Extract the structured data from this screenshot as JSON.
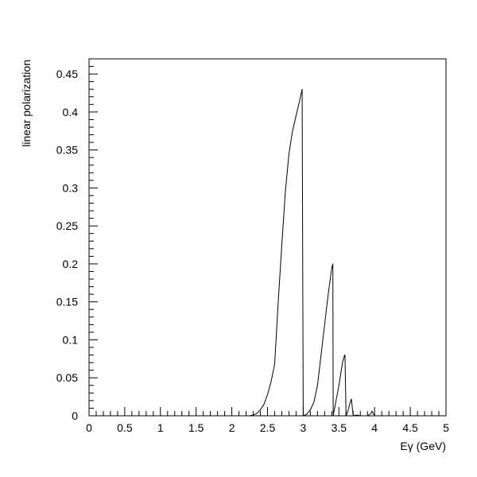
{
  "chart_data": {
    "type": "line",
    "title": "",
    "xlabel": "Eγ (GeV)",
    "ylabel": "linear polarization",
    "xlim": [
      0,
      5
    ],
    "ylim": [
      0,
      0.47
    ],
    "grid": false,
    "legend": "none",
    "line_color": "#000000",
    "x_ticks": [
      0,
      0.5,
      1,
      1.5,
      2,
      2.5,
      3,
      3.5,
      4,
      4.5,
      5
    ],
    "x_tick_labels": [
      "0",
      "0.5",
      "1",
      "1.5",
      "2",
      "2.5",
      "3",
      "3.5",
      "4",
      "4.5",
      "5"
    ],
    "y_ticks": [
      0,
      0.05,
      0.1,
      0.15,
      0.2,
      0.25,
      0.3,
      0.35,
      0.4,
      0.45
    ],
    "y_tick_labels": [
      "0",
      "0.05",
      "0.1",
      "0.15",
      "0.2",
      "0.25",
      "0.3",
      "0.35",
      "0.4",
      "0.45"
    ],
    "series": [
      {
        "x": [
          0,
          2.25,
          2.3,
          2.35,
          2.4,
          2.45,
          2.5,
          2.55,
          2.6,
          2.65,
          2.7,
          2.75,
          2.8,
          2.85,
          2.9,
          2.95,
          2.98,
          2.985,
          3.0,
          3.05,
          3.1,
          3.15,
          3.2,
          3.25,
          3.3,
          3.35,
          3.4,
          3.41,
          3.415,
          3.42,
          3.45,
          3.5,
          3.55,
          3.58,
          3.585,
          3.6,
          3.62,
          3.65,
          3.67,
          3.675,
          3.7,
          3.75,
          3.8,
          3.9,
          3.95,
          3.96,
          3.965,
          4.0,
          5.0
        ],
        "y": [
          0,
          0,
          0.001,
          0.003,
          0.008,
          0.015,
          0.028,
          0.045,
          0.068,
          0.15,
          0.225,
          0.295,
          0.345,
          0.375,
          0.395,
          0.415,
          0.428,
          0.43,
          0,
          0.002,
          0.008,
          0.018,
          0.04,
          0.08,
          0.12,
          0.16,
          0.195,
          0.198,
          0.2,
          0,
          0.015,
          0.04,
          0.07,
          0.08,
          0.08,
          0,
          0.004,
          0.015,
          0.021,
          0.022,
          0,
          0.001,
          0,
          0,
          0.003,
          0.006,
          0.006,
          0,
          0
        ]
      }
    ]
  }
}
